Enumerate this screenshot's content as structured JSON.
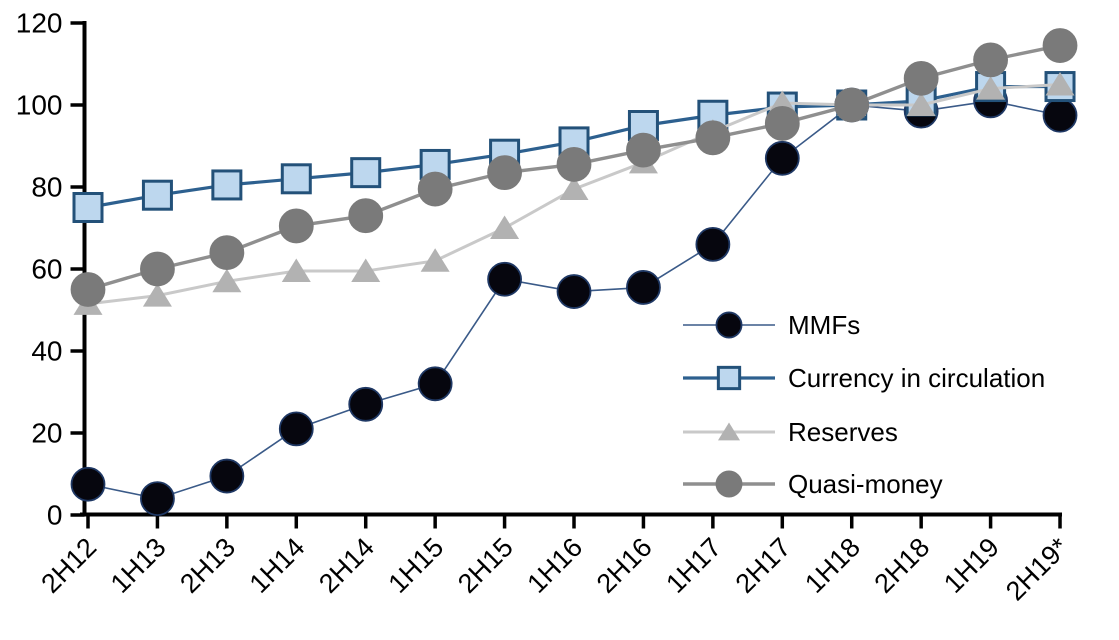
{
  "chart_data": {
    "type": "line",
    "title": "",
    "xlabel": "",
    "ylabel": "",
    "categories": [
      "2H12",
      "1H13",
      "2H13",
      "1H14",
      "2H14",
      "1H15",
      "2H15",
      "1H16",
      "2H16",
      "1H17",
      "2H17",
      "1H18",
      "2H18",
      "1H19",
      "2H19*"
    ],
    "series": [
      {
        "name": "MMFs",
        "marker": "circle",
        "line_color": "#3A5A88",
        "line_width": 1.6,
        "marker_fill": "#06060e",
        "marker_stroke": "#1F3864",
        "values": [
          7.5,
          4,
          9.5,
          21,
          27,
          32,
          57.5,
          54.5,
          55.5,
          66,
          87,
          100,
          98.5,
          101,
          97.5
        ]
      },
      {
        "name": "Currency in circulation",
        "marker": "square",
        "line_color": "#2D608F",
        "line_width": 3.2,
        "marker_fill": "#BDD7EE",
        "marker_stroke": "#235179",
        "values": [
          75,
          78,
          80.5,
          82,
          83.5,
          85.5,
          88,
          91,
          95,
          97.5,
          99.5,
          100,
          101,
          104.5,
          104.5
        ]
      },
      {
        "name": "Reserves",
        "marker": "triangle",
        "line_color": "#C9C9C9",
        "line_width": 3,
        "marker_fill": "#B2B2B2",
        "marker_stroke": "#B2B2B2",
        "values": [
          51.5,
          53.5,
          57,
          59.5,
          59.5,
          62,
          70,
          79.5,
          86,
          93.5,
          100.5,
          100,
          100,
          104,
          105
        ]
      },
      {
        "name": "Quasi-money",
        "marker": "circle",
        "line_color": "#8F8F8F",
        "line_width": 3.4,
        "marker_fill": "#7A7A7A",
        "marker_stroke": "#7A7A7A",
        "values": [
          55,
          60,
          64,
          70.5,
          73,
          79.5,
          83.5,
          85.5,
          89,
          92,
          95.5,
          100,
          106.5,
          111,
          114.5
        ]
      }
    ],
    "y_axis": {
      "min": 0,
      "max": 120,
      "step": 20,
      "tick_labels": [
        "0",
        "20",
        "40",
        "60",
        "80",
        "100",
        "120"
      ]
    },
    "x_axis": {
      "label_rotation_deg": 45
    },
    "ylim": [
      0,
      120
    ],
    "grid": false,
    "legend_position": "inside-right",
    "axis_color": "#000000",
    "background_color": "#ffffff"
  }
}
